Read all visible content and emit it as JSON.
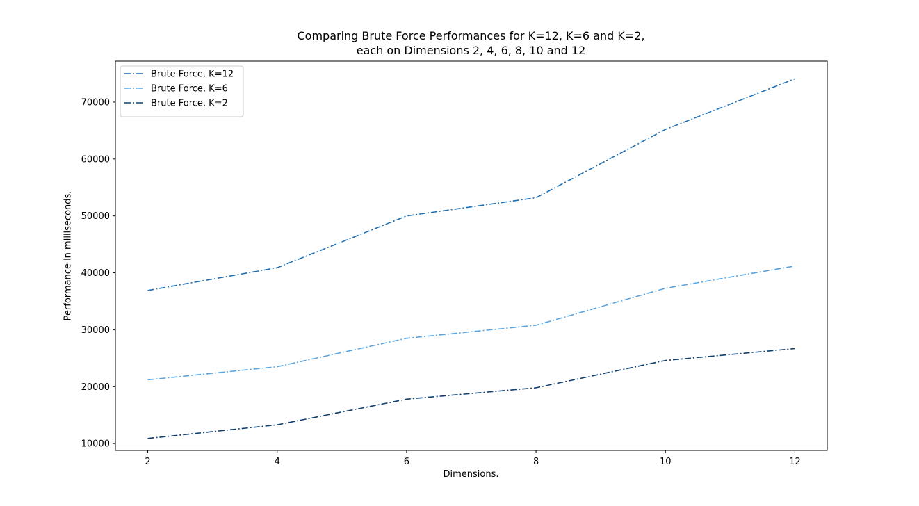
{
  "chart_data": {
    "type": "line",
    "title": "Comparing Brute Force Performances for K=12, K=6 and K=2,",
    "subtitle": "each on Dimensions 2, 4, 6, 8, 10 and 12",
    "xlabel": "Dimensions.",
    "ylabel": "Performance in milliseconds.",
    "x": [
      2,
      4,
      6,
      8,
      10,
      12
    ],
    "xlim": [
      1.5,
      12.5
    ],
    "ylim": [
      8800,
      77200
    ],
    "xticks": [
      2,
      4,
      6,
      8,
      10,
      12
    ],
    "yticks": [
      10000,
      20000,
      30000,
      40000,
      50000,
      60000,
      70000
    ],
    "grid": false,
    "legend_position": "top-left",
    "line_style": "dash-dot",
    "series": [
      {
        "name": "Brute Force, K=12",
        "color": "#1f6fb2",
        "values": [
          36900,
          40900,
          50000,
          53200,
          65200,
          74100
        ]
      },
      {
        "name": "Brute Force, K=6",
        "color": "#5aa5e0",
        "values": [
          21200,
          23500,
          28500,
          30800,
          37300,
          41200
        ]
      },
      {
        "name": "Brute Force, K=2",
        "color": "#0e3f6e",
        "values": [
          10900,
          13300,
          17800,
          19800,
          24600,
          26700
        ]
      }
    ]
  }
}
